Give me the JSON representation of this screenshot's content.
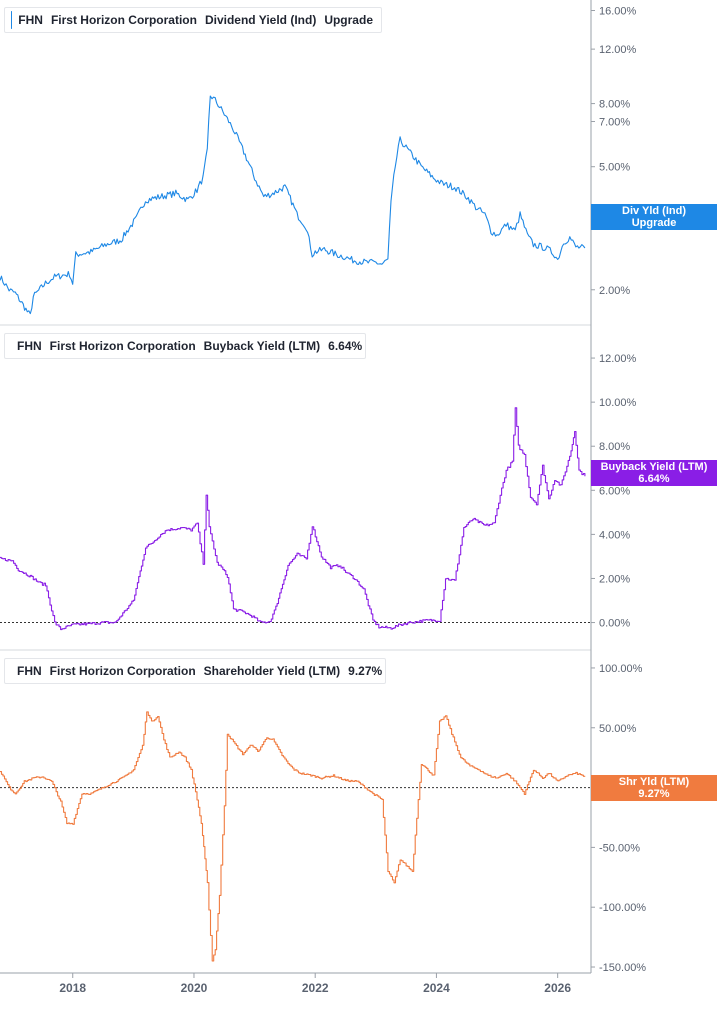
{
  "colors": {
    "dividend": "#1e88e5",
    "buyback": "#8a1ee6",
    "shareholder": "#f07b3f",
    "axis_text": "#5a6270",
    "divider": "#d6d9de"
  },
  "x_axis": {
    "ticks": [
      "2018",
      "2020",
      "2022",
      "2024",
      "2026"
    ],
    "range": [
      2016.8,
      2026.55
    ]
  },
  "panels": [
    {
      "legend": {
        "ticker": "FHN",
        "company": "First Horizon Corporation",
        "metric": "Dividend Yield (Ind)",
        "value": "Upgrade"
      },
      "badge": {
        "line1": "Div Yld (Ind)",
        "line2": "Upgrade"
      }
    },
    {
      "legend": {
        "ticker": "FHN",
        "company": "First Horizon Corporation",
        "metric": "Buyback Yield (LTM)",
        "value": "6.64%"
      },
      "badge": {
        "line1": "Buyback Yield (LTM)",
        "line2": "6.64%"
      }
    },
    {
      "legend": {
        "ticker": "FHN",
        "company": "First Horizon Corporation",
        "metric": "Shareholder Yield (LTM)",
        "value": "9.27%"
      },
      "badge": {
        "line1": "Shr Yld (LTM)",
        "line2": "9.27%"
      }
    }
  ],
  "chart_data": [
    {
      "type": "line",
      "scale": "log",
      "series": [
        {
          "name": "Dividend Yield (Ind)",
          "x": [
            2016.8,
            2016.95,
            2017.05,
            2017.25,
            2017.3,
            2017.35,
            2017.55,
            2017.7,
            2017.95,
            2018.0,
            2018.05,
            2018.3,
            2018.55,
            2018.8,
            2019.05,
            2019.2,
            2019.45,
            2019.7,
            2019.9,
            2020.05,
            2020.15,
            2020.22,
            2020.27,
            2020.35,
            2020.5,
            2020.65,
            2020.8,
            2021.0,
            2021.15,
            2021.3,
            2021.5,
            2021.7,
            2021.85,
            2021.95,
            2022.0,
            2022.15,
            2022.35,
            2022.5,
            2022.6,
            2022.85,
            2023.0,
            2023.1,
            2023.2,
            2023.25,
            2023.32,
            2023.4,
            2023.55,
            2023.75,
            2023.95,
            2024.1,
            2024.3,
            2024.5,
            2024.65,
            2024.8,
            2024.9,
            2025.0,
            2025.15,
            2025.3,
            2025.38,
            2025.5,
            2025.6,
            2025.75,
            2025.85,
            2025.95,
            2026.0,
            2026.1,
            2026.2,
            2026.3,
            2026.45
          ],
          "values": [
            2.2,
            2.0,
            1.95,
            1.7,
            1.65,
            1.9,
            2.1,
            2.2,
            2.25,
            2.1,
            2.6,
            2.65,
            2.8,
            2.9,
            3.4,
            3.9,
            4.0,
            4.1,
            3.9,
            4.2,
            4.6,
            5.6,
            8.5,
            8.2,
            7.4,
            6.6,
            5.7,
            4.6,
            4.0,
            4.1,
            4.3,
            3.5,
            3.2,
            2.6,
            2.65,
            2.7,
            2.6,
            2.55,
            2.5,
            2.45,
            2.45,
            2.42,
            2.5,
            3.8,
            5.0,
            6.1,
            5.6,
            5.0,
            4.6,
            4.4,
            4.3,
            4.0,
            3.7,
            3.5,
            3.1,
            3.0,
            3.25,
            3.1,
            3.5,
            3.0,
            2.8,
            2.75,
            2.7,
            2.6,
            2.5,
            2.85,
            2.95,
            2.75,
            2.73
          ]
        }
      ],
      "yticks": [
        2,
        5,
        7,
        8,
        12,
        16
      ],
      "ytick_labels": [
        "2.00%",
        "5.00%",
        "7.00%",
        "8.00%",
        "12.00%",
        "16.00%"
      ],
      "ylim": [
        1.55,
        17.3
      ]
    },
    {
      "type": "line",
      "series": [
        {
          "name": "Buyback Yield (LTM)",
          "x": [
            2016.8,
            2017.0,
            2017.1,
            2017.3,
            2017.45,
            2017.55,
            2017.7,
            2017.8,
            2018.0,
            2018.3,
            2018.5,
            2018.7,
            2018.85,
            2019.0,
            2019.2,
            2019.3,
            2019.45,
            2019.55,
            2019.8,
            2019.95,
            2020.05,
            2020.15,
            2020.2,
            2020.25,
            2020.3,
            2020.38,
            2020.45,
            2020.55,
            2020.65,
            2020.8,
            2020.95,
            2021.1,
            2021.25,
            2021.35,
            2021.55,
            2021.7,
            2021.85,
            2021.95,
            2022.1,
            2022.25,
            2022.4,
            2022.5,
            2022.65,
            2022.8,
            2022.95,
            2023.05,
            2023.25,
            2023.4,
            2023.55,
            2023.7,
            2023.85,
            2024.05,
            2024.15,
            2024.3,
            2024.45,
            2024.6,
            2024.8,
            2024.95,
            2025.05,
            2025.15,
            2025.25,
            2025.3,
            2025.35,
            2025.45,
            2025.55,
            2025.65,
            2025.75,
            2025.85,
            2025.95,
            2026.05,
            2026.15,
            2026.22,
            2026.28,
            2026.35,
            2026.45
          ],
          "values": [
            2.9,
            2.8,
            2.4,
            2.1,
            1.8,
            1.7,
            0.0,
            -0.3,
            -0.1,
            -0.05,
            0.0,
            0.0,
            0.5,
            1.0,
            3.4,
            3.6,
            4.0,
            4.2,
            4.3,
            4.2,
            4.5,
            2.7,
            5.8,
            4.3,
            3.7,
            2.7,
            2.5,
            2.1,
            0.6,
            0.5,
            0.3,
            0.0,
            0.05,
            0.7,
            2.6,
            3.1,
            2.9,
            4.4,
            3.0,
            2.5,
            2.6,
            2.3,
            2.0,
            1.5,
            0.1,
            -0.2,
            -0.25,
            -0.1,
            0.0,
            0.05,
            0.1,
            0.1,
            2.0,
            1.9,
            4.3,
            4.7,
            4.4,
            4.5,
            5.8,
            6.9,
            7.3,
            9.7,
            8.0,
            7.6,
            5.7,
            5.4,
            7.1,
            5.6,
            6.5,
            6.2,
            7.1,
            7.8,
            8.7,
            6.9,
            6.64
          ]
        }
      ],
      "yticks": [
        0,
        2,
        4,
        6,
        8,
        10,
        12
      ],
      "ytick_labels": [
        "0.00%",
        "2.00%",
        "4.00%",
        "6.00%",
        "8.00%",
        "10.00%",
        "12.00%"
      ],
      "ylim": [
        -1.2,
        13.5
      ]
    },
    {
      "type": "line",
      "series": [
        {
          "name": "Shareholder Yield (LTM)",
          "x": [
            2016.8,
            2016.95,
            2017.05,
            2017.2,
            2017.35,
            2017.5,
            2017.65,
            2017.8,
            2017.9,
            2018.0,
            2018.15,
            2018.3,
            2018.5,
            2018.7,
            2018.85,
            2019.0,
            2019.15,
            2019.22,
            2019.3,
            2019.4,
            2019.5,
            2019.6,
            2019.75,
            2019.85,
            2019.95,
            2020.05,
            2020.12,
            2020.18,
            2020.22,
            2020.3,
            2020.35,
            2020.42,
            2020.5,
            2020.55,
            2020.65,
            2020.8,
            2020.95,
            2021.05,
            2021.2,
            2021.3,
            2021.45,
            2021.55,
            2021.65,
            2021.75,
            2021.95,
            2022.1,
            2022.3,
            2022.5,
            2022.7,
            2022.95,
            2023.1,
            2023.2,
            2023.3,
            2023.4,
            2023.5,
            2023.6,
            2023.75,
            2023.95,
            2024.05,
            2024.15,
            2024.25,
            2024.4,
            2024.55,
            2024.7,
            2024.85,
            2025.0,
            2025.15,
            2025.3,
            2025.45,
            2025.6,
            2025.75,
            2025.85,
            2026.0,
            2026.15,
            2026.3,
            2026.45
          ],
          "values": [
            14,
            0,
            -5,
            5,
            8,
            9,
            5,
            -12,
            -30,
            -30,
            -5,
            -5,
            0,
            5,
            9,
            15,
            35,
            64,
            55,
            60,
            40,
            25,
            30,
            25,
            15,
            -10,
            -30,
            -60,
            -80,
            -145,
            -135,
            -90,
            -15,
            45,
            38,
            28,
            36,
            30,
            42,
            40,
            27,
            20,
            15,
            12,
            10,
            8,
            10,
            6,
            5,
            -5,
            -10,
            -70,
            -80,
            -60,
            -65,
            -70,
            20,
            10,
            55,
            60,
            45,
            25,
            18,
            15,
            10,
            8,
            12,
            5,
            -5,
            15,
            8,
            12,
            5,
            10,
            12,
            9.27
          ]
        }
      ],
      "yticks": [
        -150,
        -100,
        -50,
        0,
        50,
        100
      ],
      "ytick_labels": [
        "-150.00%",
        "-100.00%",
        "-50.00%",
        "0.00%",
        "50.00%",
        "100.00%"
      ],
      "ylim": [
        -155,
        115
      ]
    }
  ]
}
